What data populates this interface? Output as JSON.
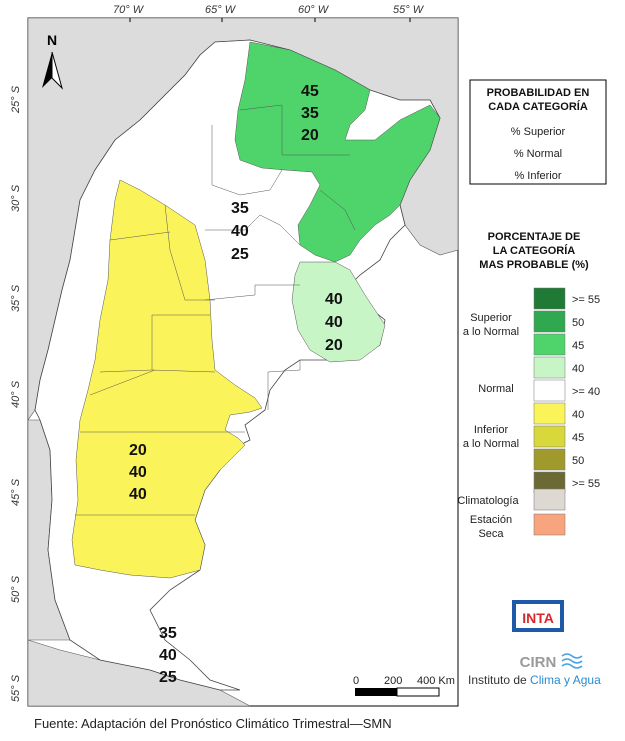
{
  "longitude_labels": [
    "70° W",
    "65° W",
    "60° W",
    "55° W"
  ],
  "latitude_labels": [
    "25° S",
    "30° S",
    "35° S",
    "40° S",
    "45° S",
    "50° S",
    "55° S"
  ],
  "north_label": "N",
  "region_probabilities": [
    {
      "superior": "45",
      "normal": "35",
      "inferior": "20"
    },
    {
      "superior": "35",
      "normal": "40",
      "inferior": "25"
    },
    {
      "superior": "40",
      "normal": "40",
      "inferior": "20"
    },
    {
      "superior": "20",
      "normal": "40",
      "inferior": "40"
    },
    {
      "superior": "35",
      "normal": "40",
      "inferior": "25"
    }
  ],
  "legend1": {
    "title_line1": "PROBABILIDAD EN",
    "title_line2": "CADA CATEGORÍA",
    "items": [
      "% Superior",
      "% Normal",
      "% Inferior"
    ]
  },
  "legend2": {
    "title_line1": "PORCENTAJE DE",
    "title_line2": "LA CATEGORÍA",
    "title_line3": "MAS PROBABLE (%)",
    "group_superior_line1": "Superior",
    "group_superior_line2": "a lo Normal",
    "group_normal": "Normal",
    "group_inferior_line1": "Inferior",
    "group_inferior_line2": "a lo Normal",
    "climatologia": "Climatología",
    "estacion_line1": "Estación",
    "estacion_line2": "Seca",
    "swatches": [
      {
        "label": ">= 55",
        "color": "#1f7a35"
      },
      {
        "label": "50",
        "color": "#2fa84f"
      },
      {
        "label": "45",
        "color": "#4fd46b"
      },
      {
        "label": "40",
        "color": "#c8f5c6"
      },
      {
        "label": ">= 40",
        "color": "#ffffff"
      },
      {
        "label": "40",
        "color": "#fbf35a"
      },
      {
        "label": "45",
        "color": "#d8d83a"
      },
      {
        "label": "50",
        "color": "#9f9a2b"
      },
      {
        "label": ">= 55",
        "color": "#6b6a34"
      }
    ],
    "clim_color": "#ddd8d2",
    "seca_color": "#f8a47e"
  },
  "scale": {
    "t0": "0",
    "t1": "200",
    "t2": "400 Km"
  },
  "logo": {
    "inta": "INTA",
    "cirn": "CIRN",
    "institute_prefix": "Instituto de ",
    "institute_highlight": "Clima y Agua"
  },
  "footer": "Fuente: Adaptación del Pronóstico Climático Trimestral—SMN"
}
